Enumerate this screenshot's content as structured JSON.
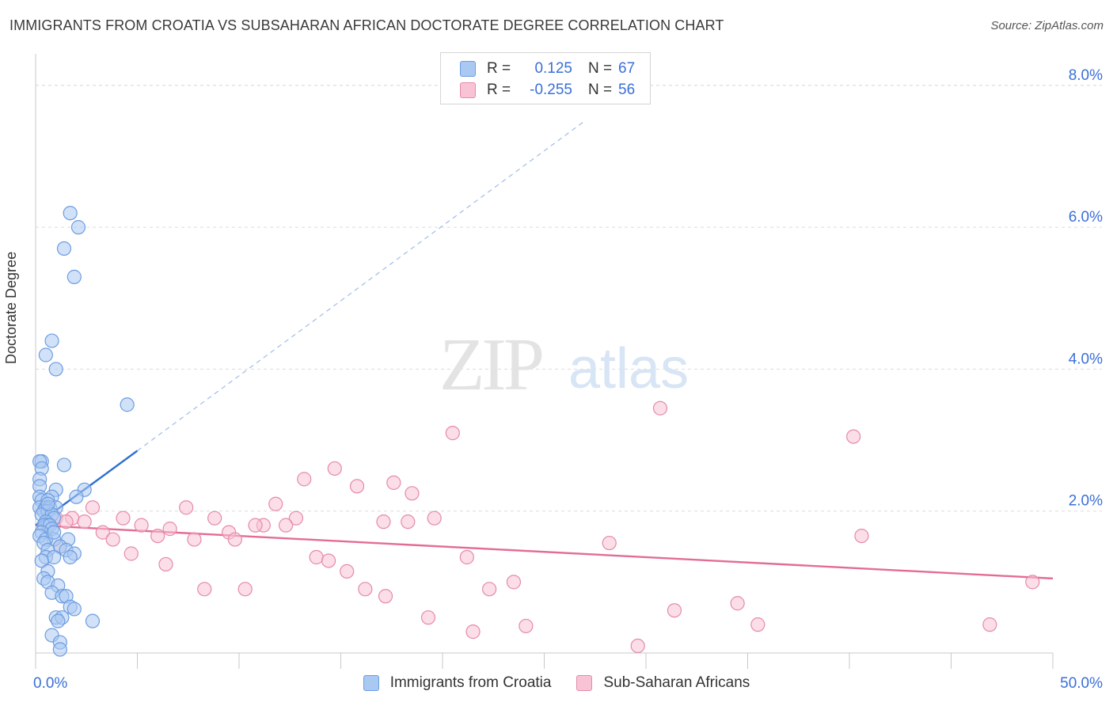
{
  "title": "IMMIGRANTS FROM CROATIA VS SUBSAHARAN AFRICAN DOCTORATE DEGREE CORRELATION CHART",
  "source": "Source: ZipAtlas.com",
  "watermark": {
    "zip": "ZIP",
    "atlas": "atlas"
  },
  "legend": {
    "rows": [
      {
        "r_label": "R =",
        "r_value": "0.125",
        "n_label": "N =",
        "n_value": "67",
        "color": "#a9c8f2",
        "border": "#6d9de0"
      },
      {
        "r_label": "R =",
        "r_value": "-0.255",
        "n_label": "N =",
        "n_value": "56",
        "color": "#f8c3d4",
        "border": "#e68aa8"
      }
    ]
  },
  "bottom_legend": [
    {
      "label": "Immigrants from Croatia",
      "color": "#a9c8f2",
      "border": "#6d9de0"
    },
    {
      "label": "Sub-Saharan Africans",
      "color": "#f8c3d4",
      "border": "#e68aa8"
    }
  ],
  "chart_data": {
    "type": "scatter",
    "title": "IMMIGRANTS FROM CROATIA VS SUBSAHARAN AFRICAN DOCTORATE DEGREE CORRELATION CHART",
    "xlabel": "",
    "ylabel": "Doctorate Degree",
    "xlim": [
      0,
      50
    ],
    "ylim": [
      0,
      8.4
    ],
    "x_tick_labels": [
      {
        "value": 0,
        "label": "0.0%"
      },
      {
        "value": 50,
        "label": "50.0%"
      }
    ],
    "y_tick_labels": [
      {
        "value": 2,
        "label": "2.0%"
      },
      {
        "value": 4,
        "label": "4.0%"
      },
      {
        "value": 6,
        "label": "6.0%"
      },
      {
        "value": 8,
        "label": "8.0%"
      }
    ],
    "colors": {
      "croatia": "#6d9de0",
      "croatia_fill": "#a9c8f2",
      "croatia_line": "#2f6fd0",
      "africa": "#e68aa8",
      "africa_fill": "#f8c3d4",
      "africa_line": "#e36c97",
      "axis_text": "#3a6fd8"
    },
    "series": [
      {
        "name": "Immigrants from Croatia",
        "points": [
          [
            1.7,
            6.2
          ],
          [
            2.1,
            6.0
          ],
          [
            1.4,
            5.7
          ],
          [
            1.9,
            5.3
          ],
          [
            0.8,
            4.4
          ],
          [
            0.5,
            4.2
          ],
          [
            1.0,
            4.0
          ],
          [
            4.5,
            3.5
          ],
          [
            0.3,
            2.7
          ],
          [
            0.2,
            2.7
          ],
          [
            1.4,
            2.65
          ],
          [
            0.3,
            2.6
          ],
          [
            0.2,
            2.45
          ],
          [
            0.2,
            2.35
          ],
          [
            2.4,
            2.3
          ],
          [
            1.0,
            2.3
          ],
          [
            0.2,
            2.2
          ],
          [
            0.8,
            2.2
          ],
          [
            2.0,
            2.2
          ],
          [
            0.3,
            2.15
          ],
          [
            0.6,
            2.15
          ],
          [
            0.2,
            2.05
          ],
          [
            0.5,
            2.05
          ],
          [
            0.7,
            2.05
          ],
          [
            1.0,
            2.05
          ],
          [
            0.4,
            2.0
          ],
          [
            0.6,
            2.0
          ],
          [
            0.3,
            1.95
          ],
          [
            0.8,
            1.95
          ],
          [
            0.9,
            1.9
          ],
          [
            0.5,
            1.85
          ],
          [
            0.6,
            1.8
          ],
          [
            0.4,
            1.8
          ],
          [
            0.7,
            1.8
          ],
          [
            0.8,
            1.75
          ],
          [
            0.3,
            1.7
          ],
          [
            0.2,
            1.65
          ],
          [
            0.9,
            1.6
          ],
          [
            0.5,
            1.6
          ],
          [
            1.6,
            1.6
          ],
          [
            0.4,
            1.55
          ],
          [
            1.2,
            1.5
          ],
          [
            0.6,
            1.45
          ],
          [
            1.5,
            1.45
          ],
          [
            1.9,
            1.4
          ],
          [
            0.5,
            1.35
          ],
          [
            0.9,
            1.35
          ],
          [
            1.7,
            1.35
          ],
          [
            0.3,
            1.3
          ],
          [
            0.6,
            1.15
          ],
          [
            0.4,
            1.05
          ],
          [
            0.6,
            1.0
          ],
          [
            1.1,
            0.95
          ],
          [
            0.8,
            0.85
          ],
          [
            1.3,
            0.8
          ],
          [
            1.5,
            0.8
          ],
          [
            1.7,
            0.65
          ],
          [
            1.9,
            0.62
          ],
          [
            1.0,
            0.5
          ],
          [
            1.3,
            0.5
          ],
          [
            2.8,
            0.45
          ],
          [
            1.1,
            0.45
          ],
          [
            0.8,
            0.25
          ],
          [
            1.2,
            0.15
          ],
          [
            1.2,
            0.05
          ],
          [
            0.6,
            2.1
          ],
          [
            0.9,
            1.7
          ]
        ],
        "trend": {
          "x0": 0.0,
          "y0": 1.8,
          "x1": 5.0,
          "y1": 2.85,
          "dashed_to_x": 27.0,
          "dashed_to_y": 7.5
        }
      },
      {
        "name": "Sub-Saharan Africans",
        "points": [
          [
            30.7,
            3.45
          ],
          [
            20.5,
            3.1
          ],
          [
            40.2,
            3.05
          ],
          [
            14.7,
            2.6
          ],
          [
            13.2,
            2.45
          ],
          [
            17.6,
            2.4
          ],
          [
            15.8,
            2.35
          ],
          [
            18.5,
            2.25
          ],
          [
            11.8,
            2.1
          ],
          [
            7.4,
            2.05
          ],
          [
            2.8,
            2.05
          ],
          [
            1.8,
            1.9
          ],
          [
            1.0,
            1.9
          ],
          [
            4.3,
            1.9
          ],
          [
            8.8,
            1.9
          ],
          [
            12.8,
            1.9
          ],
          [
            19.6,
            1.9
          ],
          [
            1.5,
            1.85
          ],
          [
            2.4,
            1.85
          ],
          [
            17.1,
            1.85
          ],
          [
            18.3,
            1.85
          ],
          [
            11.2,
            1.8
          ],
          [
            12.3,
            1.8
          ],
          [
            10.8,
            1.8
          ],
          [
            5.2,
            1.8
          ],
          [
            6.6,
            1.75
          ],
          [
            3.3,
            1.7
          ],
          [
            9.5,
            1.7
          ],
          [
            6.0,
            1.65
          ],
          [
            40.6,
            1.65
          ],
          [
            3.8,
            1.6
          ],
          [
            7.8,
            1.6
          ],
          [
            9.8,
            1.6
          ],
          [
            28.2,
            1.55
          ],
          [
            1.2,
            1.5
          ],
          [
            4.7,
            1.4
          ],
          [
            13.8,
            1.35
          ],
          [
            14.4,
            1.3
          ],
          [
            21.2,
            1.35
          ],
          [
            6.4,
            1.25
          ],
          [
            15.3,
            1.15
          ],
          [
            23.5,
            1.0
          ],
          [
            49.0,
            1.0
          ],
          [
            8.3,
            0.9
          ],
          [
            10.3,
            0.9
          ],
          [
            16.2,
            0.9
          ],
          [
            22.3,
            0.9
          ],
          [
            17.2,
            0.8
          ],
          [
            34.5,
            0.7
          ],
          [
            31.4,
            0.6
          ],
          [
            19.3,
            0.5
          ],
          [
            35.5,
            0.4
          ],
          [
            46.9,
            0.4
          ],
          [
            24.1,
            0.38
          ],
          [
            21.5,
            0.3
          ],
          [
            29.6,
            0.1
          ]
        ],
        "trend": {
          "x0": 0.0,
          "y0": 1.8,
          "x1": 50.0,
          "y1": 1.05
        }
      }
    ]
  }
}
